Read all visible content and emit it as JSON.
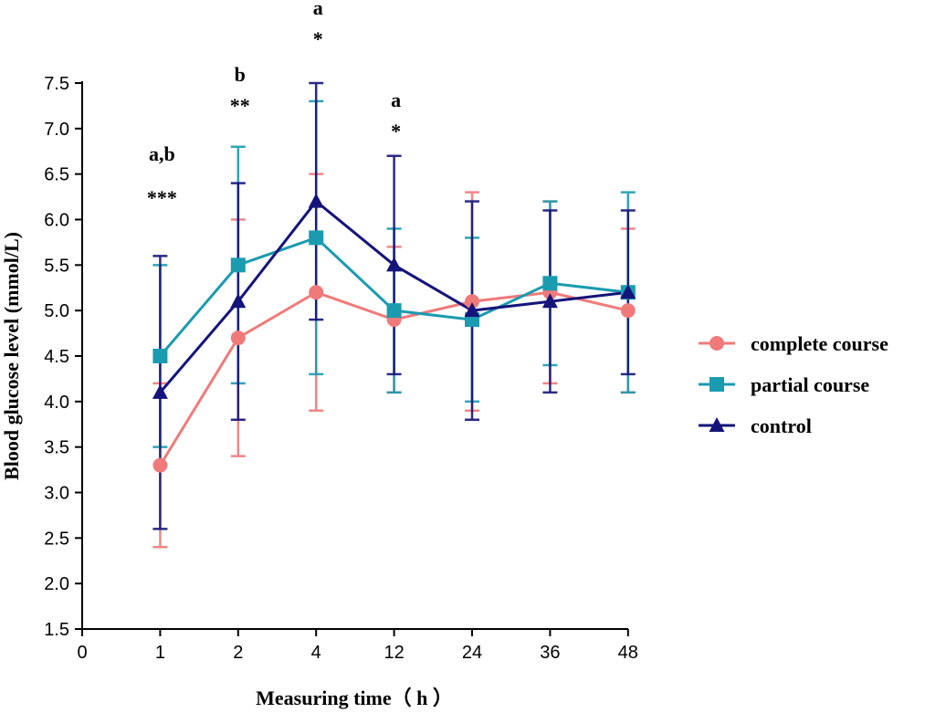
{
  "chart_data": {
    "type": "line",
    "title": "",
    "xlabel": "Measuring time（ h ）",
    "ylabel": "Blood glucose level (mmol/L)",
    "ylim": [
      1.5,
      7.5
    ],
    "y_ticks": [
      "1.5",
      "2.0",
      "2.5",
      "3.0",
      "3.5",
      "4.0",
      "4.5",
      "5.0",
      "5.5",
      "6.0",
      "6.5",
      "7.0",
      "7.5"
    ],
    "x_origin_label": "0",
    "categories": [
      "1",
      "2",
      "4",
      "12",
      "24",
      "36",
      "48"
    ],
    "series": [
      {
        "name": "complete course",
        "color": "#f07a7a",
        "marker": "circle",
        "values": [
          3.3,
          4.7,
          5.2,
          4.9,
          5.1,
          5.2,
          5.0
        ],
        "err_low": [
          2.4,
          3.4,
          3.9,
          4.1,
          3.9,
          4.2,
          4.1
        ],
        "err_high": [
          4.2,
          6.0,
          6.5,
          5.7,
          6.3,
          6.2,
          5.9
        ]
      },
      {
        "name": "partial course",
        "color": "#1b9bb0",
        "marker": "square",
        "values": [
          4.5,
          5.5,
          5.8,
          5.0,
          4.9,
          5.3,
          5.2
        ],
        "err_low": [
          3.5,
          4.2,
          4.3,
          4.1,
          4.0,
          4.4,
          4.1
        ],
        "err_high": [
          5.5,
          6.8,
          7.3,
          5.9,
          5.8,
          6.2,
          6.3
        ]
      },
      {
        "name": "control",
        "color": "#14147a",
        "marker": "triangle",
        "values": [
          4.1,
          5.1,
          6.2,
          5.5,
          5.0,
          5.1,
          5.2
        ],
        "err_low": [
          2.6,
          3.8,
          4.9,
          4.3,
          3.8,
          4.1,
          4.3
        ],
        "err_high": [
          5.6,
          6.4,
          7.5,
          6.7,
          6.2,
          6.1,
          6.1
        ]
      }
    ],
    "annotations": [
      {
        "category": "1",
        "lines": [
          "a,b",
          "***"
        ]
      },
      {
        "category": "2",
        "lines": [
          "b",
          "**"
        ]
      },
      {
        "category": "4",
        "lines": [
          "a",
          "*"
        ]
      },
      {
        "category": "12",
        "lines": [
          "a",
          "*"
        ]
      }
    ],
    "legend_position": "right"
  }
}
